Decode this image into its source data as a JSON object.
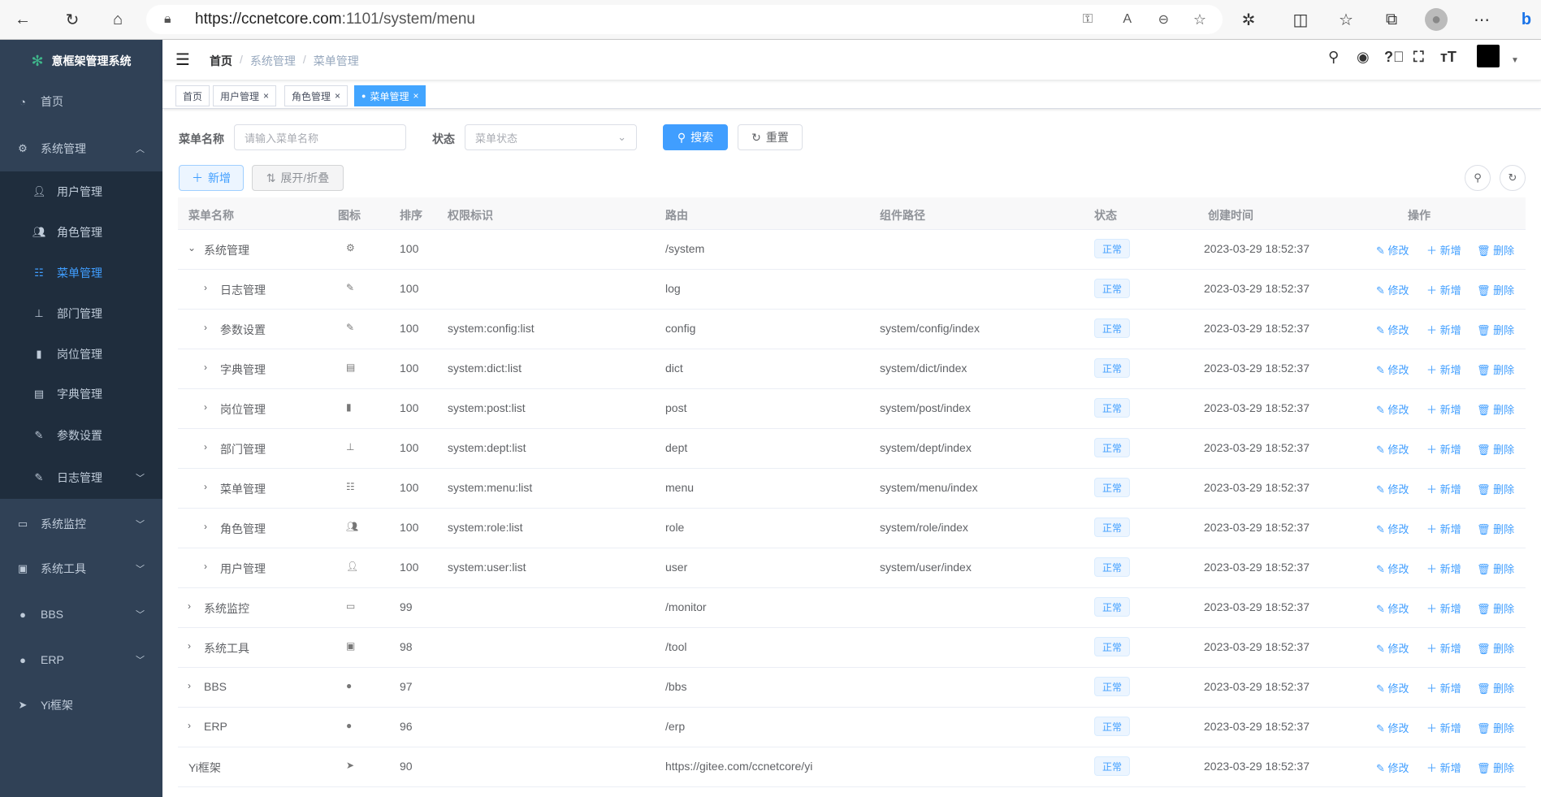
{
  "browser": {
    "url_host": "https://ccnetcore.com",
    "url_rest": ":1101/system/menu"
  },
  "sidebar": {
    "title": "意框架管理系统",
    "items": [
      {
        "label": "首页",
        "icon": "dashboard-icon",
        "level": 0,
        "arrow": ""
      },
      {
        "label": "系统管理",
        "icon": "gear-icon",
        "level": 0,
        "arrow": "up"
      },
      {
        "label": "用户管理",
        "icon": "user-icon",
        "level": 1,
        "arrow": ""
      },
      {
        "label": "角色管理",
        "icon": "peoples-icon",
        "level": 1,
        "arrow": ""
      },
      {
        "label": "菜单管理",
        "icon": "tree-table-icon",
        "level": 1,
        "arrow": "",
        "active": true
      },
      {
        "label": "部门管理",
        "icon": "tree-icon",
        "level": 1,
        "arrow": ""
      },
      {
        "label": "岗位管理",
        "icon": "post-icon",
        "level": 1,
        "arrow": ""
      },
      {
        "label": "字典管理",
        "icon": "dict-icon",
        "level": 1,
        "arrow": ""
      },
      {
        "label": "参数设置",
        "icon": "edit-icon",
        "level": 1,
        "arrow": ""
      },
      {
        "label": "日志管理",
        "icon": "log-icon",
        "level": 1,
        "arrow": "down"
      },
      {
        "label": "系统监控",
        "icon": "monitor-icon",
        "level": 0,
        "arrow": "down"
      },
      {
        "label": "系统工具",
        "icon": "tool-icon",
        "level": 0,
        "arrow": "down"
      },
      {
        "label": "BBS",
        "icon": "globe-icon",
        "level": 0,
        "arrow": "down"
      },
      {
        "label": "ERP",
        "icon": "globe-icon",
        "level": 0,
        "arrow": "down"
      },
      {
        "label": "Yi框架",
        "icon": "send-icon",
        "level": 0,
        "arrow": ""
      }
    ]
  },
  "breadcrumb": [
    "首页",
    "系统管理",
    "菜单管理"
  ],
  "tags": [
    {
      "label": "首页",
      "closable": false
    },
    {
      "label": "用户管理",
      "closable": true
    },
    {
      "label": "角色管理",
      "closable": true
    },
    {
      "label": "菜单管理",
      "closable": true,
      "active": true
    }
  ],
  "search": {
    "name_label": "菜单名称",
    "name_placeholder": "请输入菜单名称",
    "status_label": "状态",
    "status_placeholder": "菜单状态",
    "search_btn": "搜索",
    "reset_btn": "重置"
  },
  "toolbar": {
    "add_btn": "新增",
    "expand_btn": "展开/折叠"
  },
  "table": {
    "headers": [
      "菜单名称",
      "图标",
      "排序",
      "权限标识",
      "路由",
      "组件路径",
      "状态",
      "创建时间",
      "操作"
    ],
    "actions": [
      "修改",
      "新增",
      "删除"
    ],
    "rows": [
      {
        "name": "系统管理",
        "level": 0,
        "arrow": "down",
        "icon": "gear-icon",
        "sort": "100",
        "perm": "",
        "route": "/system",
        "component": "",
        "status": "正常",
        "time": "2023-03-29 18:52:37"
      },
      {
        "name": "日志管理",
        "level": 1,
        "arrow": "right",
        "icon": "log-icon",
        "sort": "100",
        "perm": "",
        "route": "log",
        "component": "",
        "status": "正常",
        "time": "2023-03-29 18:52:37"
      },
      {
        "name": "参数设置",
        "level": 1,
        "arrow": "right",
        "icon": "edit-icon",
        "sort": "100",
        "perm": "system:config:list",
        "route": "config",
        "component": "system/config/index",
        "status": "正常",
        "time": "2023-03-29 18:52:37"
      },
      {
        "name": "字典管理",
        "level": 1,
        "arrow": "right",
        "icon": "dict-icon",
        "sort": "100",
        "perm": "system:dict:list",
        "route": "dict",
        "component": "system/dict/index",
        "status": "正常",
        "time": "2023-03-29 18:52:37"
      },
      {
        "name": "岗位管理",
        "level": 1,
        "arrow": "right",
        "icon": "post-icon",
        "sort": "100",
        "perm": "system:post:list",
        "route": "post",
        "component": "system/post/index",
        "status": "正常",
        "time": "2023-03-29 18:52:37"
      },
      {
        "name": "部门管理",
        "level": 1,
        "arrow": "right",
        "icon": "tree-icon",
        "sort": "100",
        "perm": "system:dept:list",
        "route": "dept",
        "component": "system/dept/index",
        "status": "正常",
        "time": "2023-03-29 18:52:37"
      },
      {
        "name": "菜单管理",
        "level": 1,
        "arrow": "right",
        "icon": "tree-table-icon",
        "sort": "100",
        "perm": "system:menu:list",
        "route": "menu",
        "component": "system/menu/index",
        "status": "正常",
        "time": "2023-03-29 18:52:37"
      },
      {
        "name": "角色管理",
        "level": 1,
        "arrow": "right",
        "icon": "peoples-icon",
        "sort": "100",
        "perm": "system:role:list",
        "route": "role",
        "component": "system/role/index",
        "status": "正常",
        "time": "2023-03-29 18:52:37"
      },
      {
        "name": "用户管理",
        "level": 1,
        "arrow": "right",
        "icon": "user-icon",
        "sort": "100",
        "perm": "system:user:list",
        "route": "user",
        "component": "system/user/index",
        "status": "正常",
        "time": "2023-03-29 18:52:37"
      },
      {
        "name": "系统监控",
        "level": 0,
        "arrow": "right",
        "icon": "monitor-icon",
        "sort": "99",
        "perm": "",
        "route": "/monitor",
        "component": "",
        "status": "正常",
        "time": "2023-03-29 18:52:37"
      },
      {
        "name": "系统工具",
        "level": 0,
        "arrow": "right",
        "icon": "tool-icon",
        "sort": "98",
        "perm": "",
        "route": "/tool",
        "component": "",
        "status": "正常",
        "time": "2023-03-29 18:52:37"
      },
      {
        "name": "BBS",
        "level": 0,
        "arrow": "right",
        "icon": "globe-icon",
        "sort": "97",
        "perm": "",
        "route": "/bbs",
        "component": "",
        "status": "正常",
        "time": "2023-03-29 18:52:37"
      },
      {
        "name": "ERP",
        "level": 0,
        "arrow": "right",
        "icon": "globe-icon",
        "sort": "96",
        "perm": "",
        "route": "/erp",
        "component": "",
        "status": "正常",
        "time": "2023-03-29 18:52:37"
      },
      {
        "name": "Yi框架",
        "level": 0,
        "arrow": "",
        "icon": "send-icon",
        "sort": "90",
        "perm": "",
        "route": "https://gitee.com/ccnetcore/yi",
        "component": "",
        "status": "正常",
        "time": "2023-03-29 18:52:37"
      }
    ]
  },
  "colors": {
    "primary": "#409eff",
    "sidebar": "#304156",
    "submenu": "#1f2d3d"
  }
}
